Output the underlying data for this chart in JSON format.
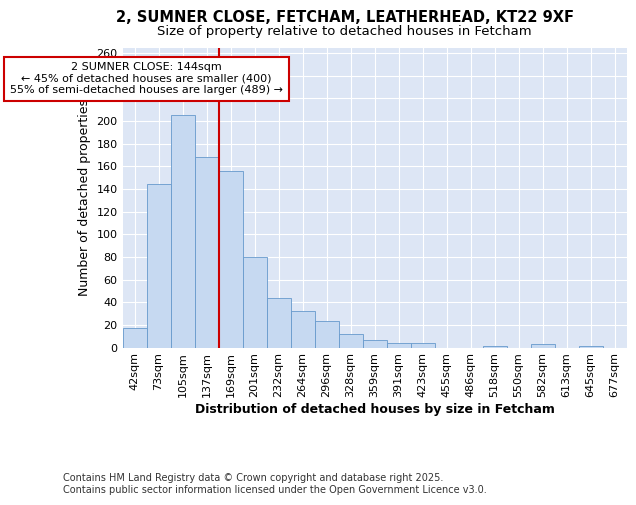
{
  "title_line1": "2, SUMNER CLOSE, FETCHAM, LEATHERHEAD, KT22 9XF",
  "title_line2": "Size of property relative to detached houses in Fetcham",
  "xlabel": "Distribution of detached houses by size in Fetcham",
  "ylabel": "Number of detached properties",
  "categories": [
    "42sqm",
    "73sqm",
    "105sqm",
    "137sqm",
    "169sqm",
    "201sqm",
    "232sqm",
    "264sqm",
    "296sqm",
    "328sqm",
    "359sqm",
    "391sqm",
    "423sqm",
    "455sqm",
    "486sqm",
    "518sqm",
    "550sqm",
    "582sqm",
    "613sqm",
    "645sqm",
    "677sqm"
  ],
  "values": [
    17,
    144,
    205,
    168,
    156,
    80,
    44,
    32,
    23,
    12,
    7,
    4,
    4,
    0,
    0,
    1,
    0,
    3,
    0,
    1,
    0
  ],
  "bar_color": "#c6d9f1",
  "bar_edge_color": "#6699cc",
  "vline_color": "#cc0000",
  "vline_x_index": 3.5,
  "annotation_text": "2 SUMNER CLOSE: 144sqm\n← 45% of detached houses are smaller (400)\n55% of semi-detached houses are larger (489) →",
  "annotation_box_color": "white",
  "annotation_box_edge": "#cc0000",
  "footnote": "Contains HM Land Registry data © Crown copyright and database right 2025.\nContains public sector information licensed under the Open Government Licence v3.0.",
  "ylim": [
    0,
    265
  ],
  "yticks": [
    0,
    20,
    40,
    60,
    80,
    100,
    120,
    140,
    160,
    180,
    200,
    220,
    240,
    260
  ],
  "bg_color": "#dde6f5",
  "grid_color": "white",
  "title_fontsize": 10.5,
  "subtitle_fontsize": 9.5,
  "axis_label_fontsize": 9,
  "tick_fontsize": 8,
  "annotation_fontsize": 8,
  "footnote_fontsize": 7
}
